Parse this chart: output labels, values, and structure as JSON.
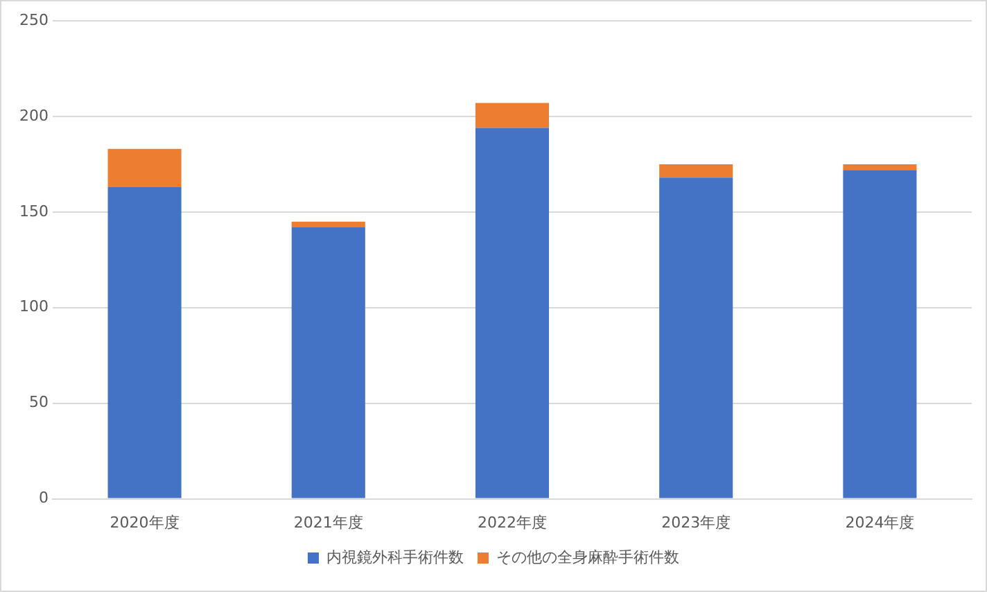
{
  "chart_data": {
    "type": "bar",
    "stacked": true,
    "categories": [
      "2020年度",
      "2021年度",
      "2022年度",
      "2023年度",
      "2024年度"
    ],
    "series": [
      {
        "name": "内視鏡外科手術件数",
        "color": "#4472c4",
        "values": [
          163,
          142,
          194,
          168,
          172
        ]
      },
      {
        "name": "その他の全身麻酔手術件数",
        "color": "#ed7d31",
        "values": [
          20,
          3,
          13,
          7,
          3
        ]
      }
    ],
    "ylim": [
      0,
      250
    ],
    "yticks": [
      0,
      50,
      100,
      150,
      200,
      250
    ],
    "grid": "y",
    "legend": "bottom"
  }
}
